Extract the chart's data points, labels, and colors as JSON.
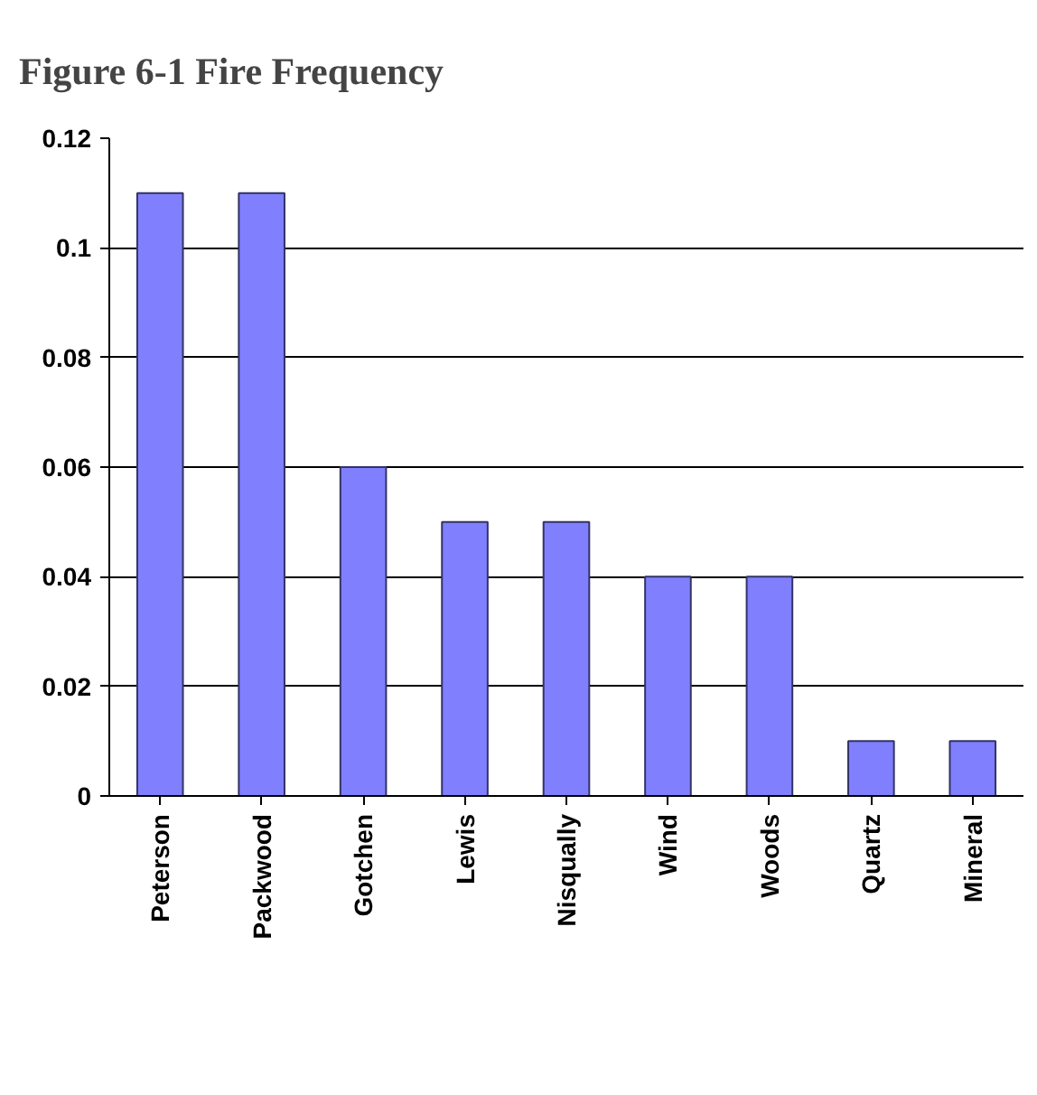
{
  "chart_data": {
    "type": "bar",
    "title": "Figure 6-1  Fire Frequency",
    "categories": [
      "Peterson",
      "Packwood",
      "Gotchen",
      "Lewis",
      "Nisqually",
      "Wind",
      "Woods",
      "Quartz",
      "Mineral"
    ],
    "values": [
      0.11,
      0.11,
      0.06,
      0.05,
      0.05,
      0.04,
      0.04,
      0.01,
      0.01
    ],
    "color": "#8080ff",
    "ylim": [
      0,
      0.12
    ],
    "yticks": [
      0,
      0.02,
      0.04,
      0.06,
      0.08,
      0.1,
      0.12
    ],
    "grid": "y"
  }
}
